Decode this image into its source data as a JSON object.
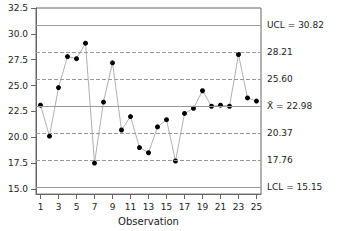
{
  "chart_data": {
    "type": "line",
    "x_label": "Observation",
    "x": [
      1,
      2,
      3,
      4,
      5,
      6,
      7,
      8,
      9,
      10,
      11,
      12,
      13,
      14,
      15,
      16,
      17,
      18,
      19,
      20,
      21,
      22,
      23,
      24,
      25
    ],
    "values": [
      23.1,
      20.1,
      24.8,
      27.8,
      27.6,
      29.1,
      17.5,
      23.4,
      27.2,
      20.7,
      22.0,
      19.0,
      18.5,
      21.0,
      21.7,
      17.7,
      22.3,
      22.8,
      24.5,
      23.0,
      23.1,
      23.0,
      28.0,
      23.8,
      23.5
    ],
    "color": "#b0b0b0",
    "marker": "circle",
    "xlim": [
      0.5,
      25.5
    ],
    "xticks": [
      1,
      3,
      5,
      7,
      9,
      11,
      13,
      15,
      17,
      19,
      21,
      23,
      25
    ],
    "ylim": [
      14.5,
      32.5
    ],
    "yticks": [
      {
        "value": 15,
        "label": "15.0"
      },
      {
        "value": 17.5,
        "label": "17.5"
      },
      {
        "value": 20,
        "label": "20.0"
      },
      {
        "value": 22.5,
        "label": "22.5"
      },
      {
        "value": 25,
        "label": "25.0"
      },
      {
        "value": 27.5,
        "label": "27.5"
      },
      {
        "value": 30,
        "label": "30.0"
      },
      {
        "value": 32.5,
        "label": "32.5"
      }
    ],
    "grid": false,
    "reference_lines": [
      {
        "value": 30.82,
        "label": "UCL = 30.82",
        "line_style": "solid"
      },
      {
        "value": 28.21,
        "label": "28.21",
        "line_style": "dashed"
      },
      {
        "value": 25.6,
        "label": "25.60",
        "line_style": "dashed"
      },
      {
        "value": 22.98,
        "label": "X̄ = 22.98",
        "line_style": "solid"
      },
      {
        "value": 20.37,
        "label": "20.37",
        "line_style": "dashed"
      },
      {
        "value": 17.76,
        "label": "17.76",
        "line_style": "dashed"
      },
      {
        "value": 15.15,
        "label": "LCL = 15.15",
        "line_style": "solid"
      }
    ]
  }
}
